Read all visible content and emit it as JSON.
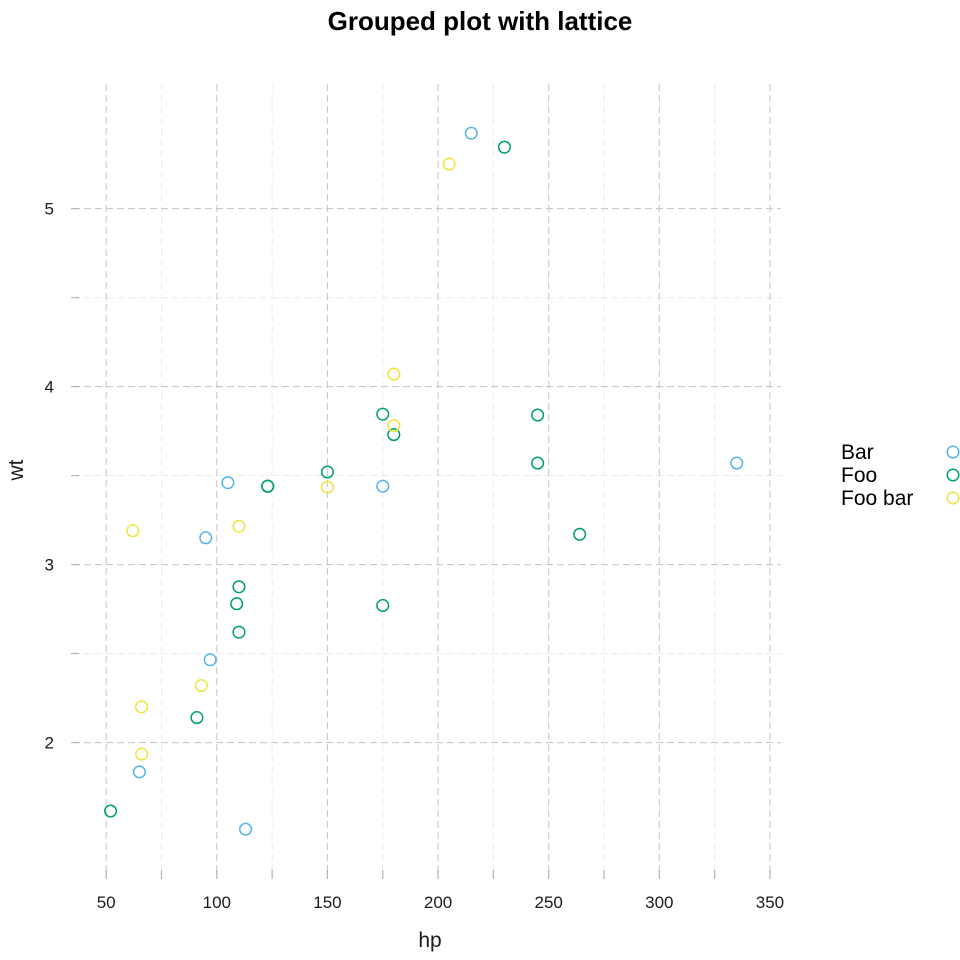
{
  "chart_data": {
    "type": "scatter",
    "title": "Grouped plot with lattice",
    "xlabel": "hp",
    "ylabel": "wt",
    "xlim": [
      35,
      355
    ],
    "ylim": [
      1.25,
      5.7
    ],
    "xticks": [
      50,
      100,
      150,
      200,
      250,
      300,
      350
    ],
    "yticks": [
      2,
      3,
      4,
      5
    ],
    "grid": true,
    "legend_position": "right",
    "series": [
      {
        "name": "Bar",
        "color": "#56B4E9",
        "points": [
          {
            "x": 215,
            "y": 5.424
          },
          {
            "x": 105,
            "y": 3.46
          },
          {
            "x": 175,
            "y": 3.44
          },
          {
            "x": 335,
            "y": 3.57
          },
          {
            "x": 95,
            "y": 3.15
          },
          {
            "x": 97,
            "y": 2.465
          },
          {
            "x": 65,
            "y": 1.835
          },
          {
            "x": 113,
            "y": 1.513
          }
        ]
      },
      {
        "name": "Foo",
        "color": "#009E73",
        "points": [
          {
            "x": 230,
            "y": 5.345
          },
          {
            "x": 175,
            "y": 3.845
          },
          {
            "x": 180,
            "y": 3.73
          },
          {
            "x": 245,
            "y": 3.84
          },
          {
            "x": 245,
            "y": 3.57
          },
          {
            "x": 150,
            "y": 3.52
          },
          {
            "x": 123,
            "y": 3.44
          },
          {
            "x": 123,
            "y": 3.44
          },
          {
            "x": 264,
            "y": 3.17
          },
          {
            "x": 110,
            "y": 2.875
          },
          {
            "x": 109,
            "y": 2.78
          },
          {
            "x": 175,
            "y": 2.77
          },
          {
            "x": 110,
            "y": 2.62
          },
          {
            "x": 91,
            "y": 2.14
          },
          {
            "x": 52,
            "y": 1.615
          }
        ]
      },
      {
        "name": "Foo bar",
        "color": "#F0E442",
        "points": [
          {
            "x": 205,
            "y": 5.25
          },
          {
            "x": 180,
            "y": 4.07
          },
          {
            "x": 180,
            "y": 3.78
          },
          {
            "x": 150,
            "y": 3.435
          },
          {
            "x": 110,
            "y": 3.215
          },
          {
            "x": 62,
            "y": 3.19
          },
          {
            "x": 93,
            "y": 2.32
          },
          {
            "x": 66,
            "y": 2.2
          },
          {
            "x": 66,
            "y": 1.935
          }
        ]
      }
    ]
  }
}
